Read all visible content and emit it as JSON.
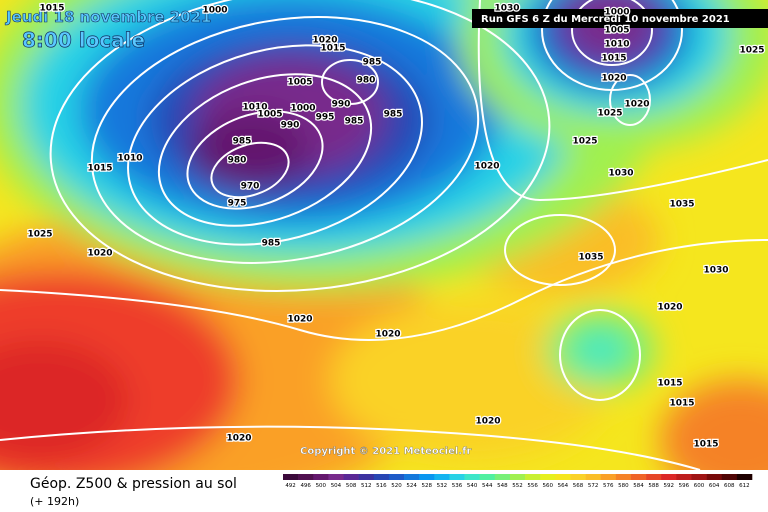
{
  "header": {
    "date": "Jeudi 18 novembre 2021",
    "time": "8:00 locale",
    "run": "Run GFS 6 Z du Mercredi 10 novembre 2021"
  },
  "copyright": "Copyright © 2021 Meteociel.fr",
  "isobar_labels": [
    1015,
    1000,
    1030,
    1020,
    1015,
    1005,
    985,
    980,
    1010,
    1005,
    1000,
    995,
    990,
    990,
    985,
    985,
    985,
    980,
    970,
    975,
    985,
    1010,
    1015,
    1025,
    1020,
    1020,
    1020,
    1020,
    1000,
    1005,
    1010,
    1015,
    1020,
    1020,
    1025,
    1025,
    1025,
    1030,
    1035,
    1035,
    1030,
    1020,
    1015,
    1015,
    1015,
    1020,
    1020
  ],
  "legend": {
    "title": "Géop. Z500 & pression au sol",
    "lead": "(+ 192h)",
    "levels": [
      492,
      496,
      500,
      504,
      508,
      512,
      516,
      520,
      524,
      528,
      532,
      536,
      540,
      544,
      548,
      552,
      556,
      560,
      564,
      568,
      572,
      576,
      580,
      584,
      588,
      592,
      596,
      600,
      604,
      608,
      612
    ],
    "colors": [
      "#3c0a3c",
      "#501050",
      "#64186e",
      "#782a8c",
      "#5a2896",
      "#3c32a0",
      "#2846b4",
      "#1e5ac8",
      "#1478dc",
      "#0a96f0",
      "#14b4f0",
      "#28d2e6",
      "#3ce6c8",
      "#50f0a0",
      "#78f078",
      "#a0f050",
      "#c8f032",
      "#e6f01e",
      "#f5e61e",
      "#fad228",
      "#fabe28",
      "#faa028",
      "#f58228",
      "#f06428",
      "#e64628",
      "#dc2828",
      "#be1e1e",
      "#a01414",
      "#780a0a",
      "#500505",
      "#1e0000"
    ]
  }
}
